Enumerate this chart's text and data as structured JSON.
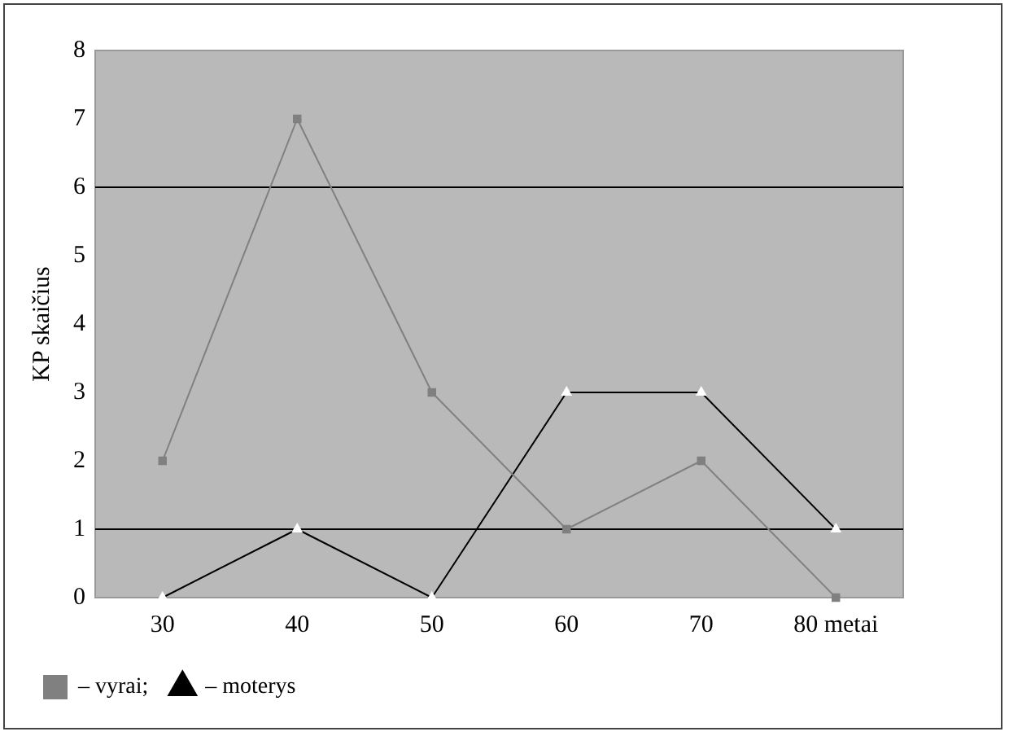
{
  "chart_data": {
    "type": "line",
    "ylabel": "KP skaičius",
    "categories": [
      "30",
      "40",
      "50",
      "60",
      "70",
      "80 metai"
    ],
    "series": [
      {
        "name": "– vyrai;",
        "color": "#808080",
        "marker": "square",
        "values": [
          2,
          7,
          3,
          1,
          2,
          0
        ]
      },
      {
        "name": "– moterys",
        "color": "#000000",
        "marker": "triangle",
        "values": [
          0,
          1,
          0,
          3,
          3,
          1
        ]
      }
    ],
    "ylim": [
      0,
      8
    ],
    "yticks": [
      0,
      1,
      2,
      3,
      4,
      5,
      6,
      7,
      8
    ],
    "ref_lines": [
      {
        "axis": "y",
        "value": 1,
        "color": "#000000"
      },
      {
        "axis": "y",
        "value": 6,
        "color": "#000000"
      }
    ],
    "grid": false,
    "legend": "bottom left"
  }
}
